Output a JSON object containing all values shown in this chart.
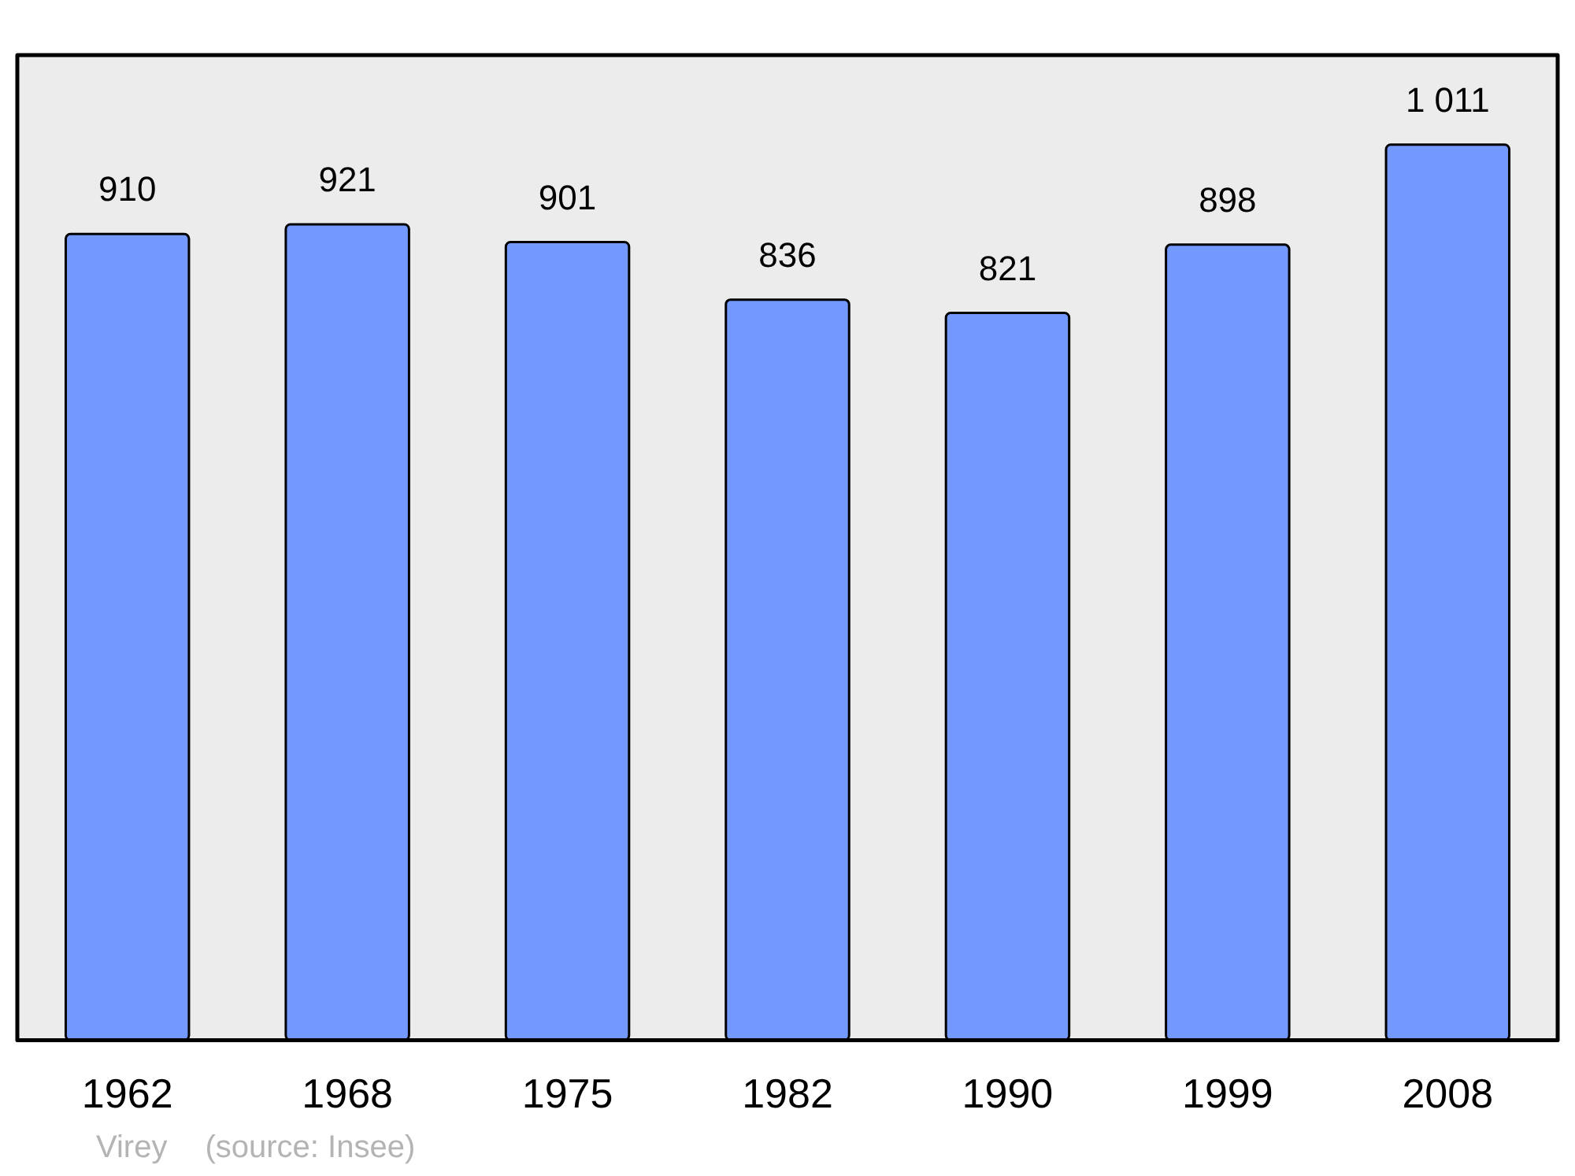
{
  "chart_data": {
    "type": "bar",
    "categories": [
      "1962",
      "1968",
      "1975",
      "1982",
      "1990",
      "1999",
      "2008"
    ],
    "values": [
      910,
      921,
      901,
      836,
      821,
      898,
      1011
    ],
    "value_labels": [
      "910",
      "921",
      "901",
      "836",
      "821",
      "898",
      "1 011"
    ],
    "color": "#7399ff",
    "ylim": [
      0,
      1112
    ],
    "tick_labels": "x",
    "grid": false,
    "legend": false,
    "annotations": [
      "Virey",
      "(source: Insee)"
    ]
  }
}
